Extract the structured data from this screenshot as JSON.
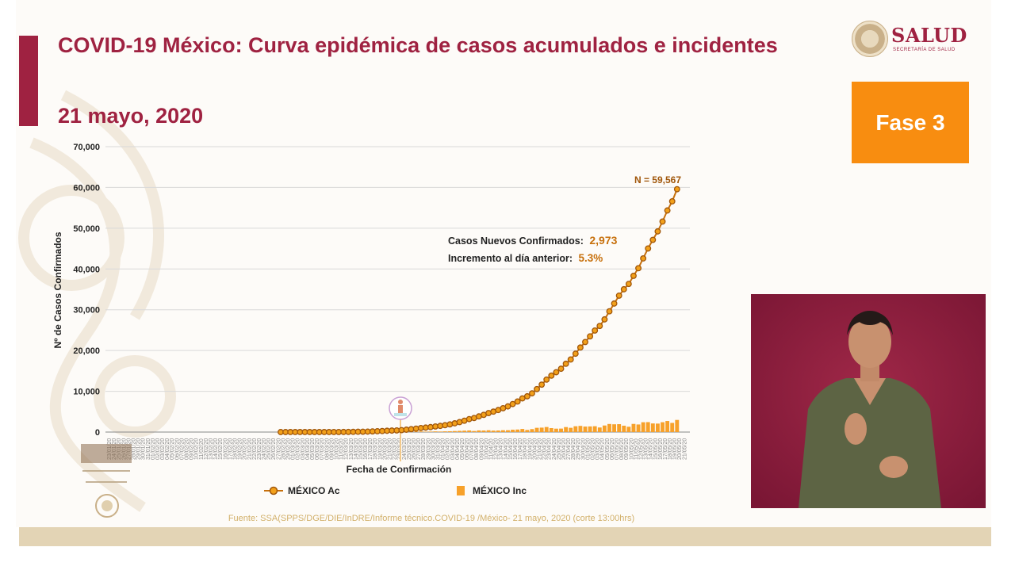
{
  "header": {
    "title": "COVID-19 México: Curva epidémica de casos acumulados e incidentes",
    "date": "21 mayo, 2020"
  },
  "logo": {
    "name": "SALUD",
    "subtitle": "SECRETARÍA DE SALUD"
  },
  "phase_badge": "Fase 3",
  "source_note": "Fuente: SSA(SPPS/DGE/DIE/InDRE/Informe técnico.COVID-19 /México- 21 mayo, 2020 (corte 13:00hrs)",
  "colors": {
    "primary": "#9f2241",
    "accent_orange": "#f88d10",
    "line_orange": "#c7700c",
    "point_fill": "#f2a01a",
    "bar_orange": "#f7a12a",
    "beige": "#e3d4b5",
    "interpreter_bg": "#8a1c3b"
  },
  "chart_data": {
    "type": "line",
    "ylabel": "Nº de Casos Confirmados",
    "xlabel": "Fecha de Confirmación",
    "ylim": [
      0,
      70000
    ],
    "yticks": [
      0,
      10000,
      20000,
      30000,
      40000,
      50000,
      60000,
      70000
    ],
    "ytick_labels": [
      "0",
      "10,000",
      "20,000",
      "30,000",
      "40,000",
      "50,000",
      "60,000",
      "70,000"
    ],
    "x_range": [
      "2020-02-27",
      "2020-05-21"
    ],
    "grid": true,
    "legend_position": "bottom",
    "series": [
      {
        "name": "MÉXICO Ac",
        "type": "line",
        "start_date": "2020-02-27",
        "values": [
          1,
          2,
          4,
          4,
          5,
          5,
          5,
          6,
          7,
          7,
          7,
          11,
          15,
          26,
          41,
          53,
          82,
          93,
          118,
          164,
          203,
          251,
          316,
          367,
          405,
          475,
          585,
          717,
          848,
          993,
          1094,
          1215,
          1378,
          1510,
          1688,
          1890,
          2143,
          2439,
          2785,
          3181,
          3441,
          3844,
          4219,
          4661,
          5014,
          5399,
          5847,
          6297,
          6875,
          7497,
          8261,
          8772,
          9501,
          10544,
          11633,
          12872,
          13842,
          14677,
          15529,
          16752,
          17799,
          19224,
          20739,
          22088,
          23471,
          24905,
          26025,
          27634,
          29616,
          31522,
          33460,
          35022,
          36327,
          38324,
          40186,
          42595,
          45032,
          47144,
          49219,
          51633,
          54346,
          56594,
          59567
        ]
      },
      {
        "name": "MÉXICO Inc",
        "type": "bar",
        "start_date": "2020-02-27",
        "values": [
          1,
          1,
          2,
          0,
          1,
          0,
          0,
          1,
          1,
          0,
          0,
          4,
          4,
          11,
          15,
          12,
          29,
          11,
          25,
          46,
          39,
          48,
          65,
          51,
          38,
          70,
          110,
          132,
          131,
          145,
          101,
          121,
          163,
          132,
          178,
          202,
          253,
          296,
          346,
          396,
          260,
          403,
          375,
          442,
          353,
          385,
          448,
          450,
          578,
          622,
          764,
          511,
          729,
          1043,
          1089,
          1239,
          970,
          835,
          852,
          1223,
          1047,
          1425,
          1515,
          1349,
          1383,
          1434,
          1120,
          1609,
          1982,
          1906,
          1938,
          1562,
          1305,
          1997,
          1862,
          2409,
          2437,
          2112,
          2075,
          2414,
          2713,
          2248,
          2973
        ]
      }
    ],
    "annotations": {
      "n_label": "N = 59,567",
      "new_cases_label": "Casos Nuevos Confirmados:",
      "new_cases_value": "2,973",
      "increase_label": "Incremento al día anterior:",
      "increase_value": "5.3%"
    }
  }
}
